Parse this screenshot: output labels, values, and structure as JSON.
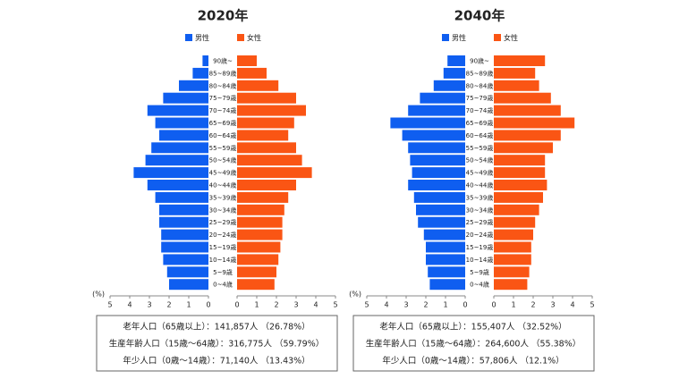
{
  "chart_data": [
    {
      "type": "pyramid",
      "title": "2020年",
      "categories": [
        "90歳~",
        "85~89歳",
        "80~84歳",
        "75~79歳",
        "70~74歳",
        "65~69歳",
        "60~64歳",
        "55~59歳",
        "50~54歳",
        "45~49歳",
        "40~44歳",
        "35~39歳",
        "30~34歳",
        "25~29歳",
        "20~24歳",
        "15~19歳",
        "10~14歳",
        "5~9歳",
        "0~4歳"
      ],
      "series": [
        {
          "name": "男性",
          "color": "#0f5ef0",
          "values": [
            0.3,
            0.8,
            1.5,
            2.3,
            3.1,
            2.7,
            2.5,
            2.9,
            3.2,
            3.8,
            3.1,
            2.7,
            2.5,
            2.5,
            2.4,
            2.4,
            2.3,
            2.1,
            2.0
          ]
        },
        {
          "name": "女性",
          "color": "#fa5514",
          "values": [
            1.0,
            1.5,
            2.1,
            3.0,
            3.5,
            2.9,
            2.6,
            3.0,
            3.3,
            3.8,
            3.0,
            2.6,
            2.4,
            2.3,
            2.3,
            2.2,
            2.1,
            2.0,
            1.9
          ]
        }
      ],
      "xlim": [
        0,
        5
      ],
      "xticks": [
        0,
        1,
        2,
        3,
        4,
        5
      ],
      "x_label": "(%)",
      "summary": [
        "老年人口（65歳以上）：141,857人 （26.78%）",
        "生産年齢人口（15歳～64歳）：316,775人 （59.79%）",
        "年少人口（0歳～14歳）：71,140人 （13.43%）"
      ]
    },
    {
      "type": "pyramid",
      "title": "2040年",
      "categories": [
        "90歳~",
        "85~89歳",
        "80~84歳",
        "75~79歳",
        "70~74歳",
        "65~69歳",
        "60~64歳",
        "55~59歳",
        "50~54歳",
        "45~49歳",
        "40~44歳",
        "35~39歳",
        "30~34歳",
        "25~29歳",
        "20~24歳",
        "15~19歳",
        "10~14歳",
        "5~9歳",
        "0~4歳"
      ],
      "series": [
        {
          "name": "男性",
          "color": "#0f5ef0",
          "values": [
            0.9,
            1.1,
            1.6,
            2.3,
            2.9,
            3.8,
            3.2,
            2.9,
            2.8,
            2.7,
            2.9,
            2.6,
            2.5,
            2.4,
            2.1,
            2.0,
            2.0,
            1.9,
            1.8
          ]
        },
        {
          "name": "女性",
          "color": "#fa5514",
          "values": [
            2.6,
            2.1,
            2.3,
            2.9,
            3.4,
            4.1,
            3.4,
            3.0,
            2.6,
            2.6,
            2.7,
            2.5,
            2.3,
            2.1,
            2.0,
            1.9,
            1.9,
            1.8,
            1.7
          ]
        }
      ],
      "xlim": [
        0,
        5
      ],
      "xticks": [
        0,
        1,
        2,
        3,
        4,
        5
      ],
      "x_label": "(%)",
      "summary": [
        "老年人口（65歳以上）：155,407人 （32.52%）",
        "生産年齢人口（15歳～64歳）：264,600人 （55.38%）",
        "年少人口（0歳～14歳）：57,806人 （12.1%）"
      ]
    }
  ]
}
